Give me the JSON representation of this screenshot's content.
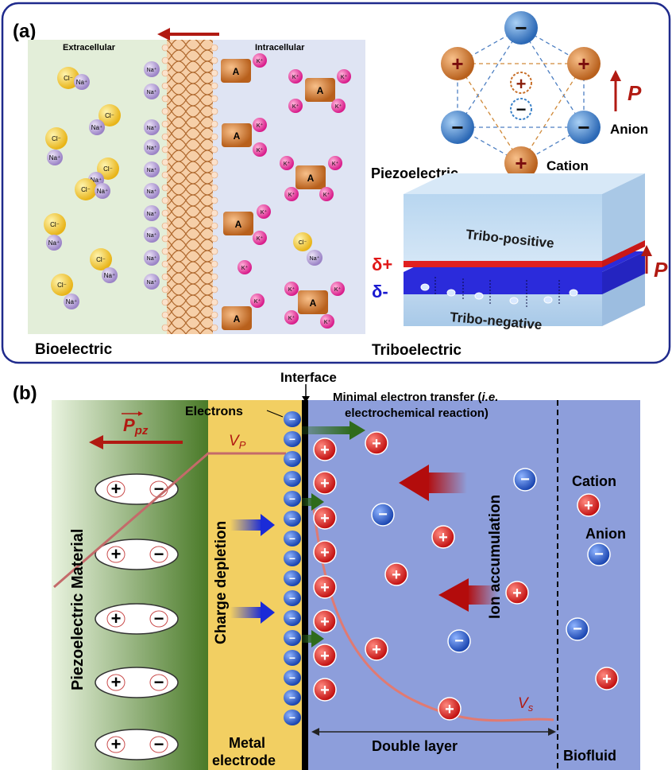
{
  "panel_a": {
    "label": "(a)",
    "bio": {
      "extracellular": "Extracellular",
      "intracellular": "Intracellular",
      "caption": "Bioelectric",
      "ion_cl": "Cl⁻",
      "ion_na": "Na⁺",
      "ion_k": "K⁺",
      "anion_a": "A"
    },
    "piezo": {
      "caption": "Piezoelectric",
      "cation": "Cation",
      "anion": "Anion",
      "p_label": "P",
      "plus": "+",
      "minus": "−"
    },
    "tribo": {
      "caption": "Triboelectric",
      "top": "Tribo-positive",
      "bottom": "Tribo-negative",
      "delta_plus": "δ+",
      "delta_minus": "δ-",
      "p_label": "P"
    }
  },
  "panel_b": {
    "label": "(b)",
    "interface": "Interface",
    "electrons": "Electrons",
    "transfer_line1": "Minimal electron transfer (",
    "transfer_ie": "i.e.",
    "transfer_line2": "electrochemical reaction)",
    "ppz": "P",
    "ppz_sub": "pz",
    "vp": "V",
    "vp_sub": "P",
    "vs": "V",
    "vs_sub": "s",
    "piezo_material": "Piezoelectric Material",
    "charge_depletion": "Charge depletion",
    "ion_accumulation": "Ion accumulation",
    "metal1": "Metal",
    "metal2": "electrode",
    "double_layer": "Double layer",
    "biofluid": "Biofluid",
    "cation": "Cation",
    "anion": "Anion"
  },
  "colors": {
    "frame": "#1f2a8c",
    "piezo_cation": "#c8702a",
    "piezo_anion": "#3b82c8",
    "ion_plus": "#d8262a",
    "ion_minus": "#2b62c4",
    "arrow_red": "#b11a12",
    "electrode_yellow": "#f2cf62",
    "fluid_blue": "#8d9edb"
  }
}
